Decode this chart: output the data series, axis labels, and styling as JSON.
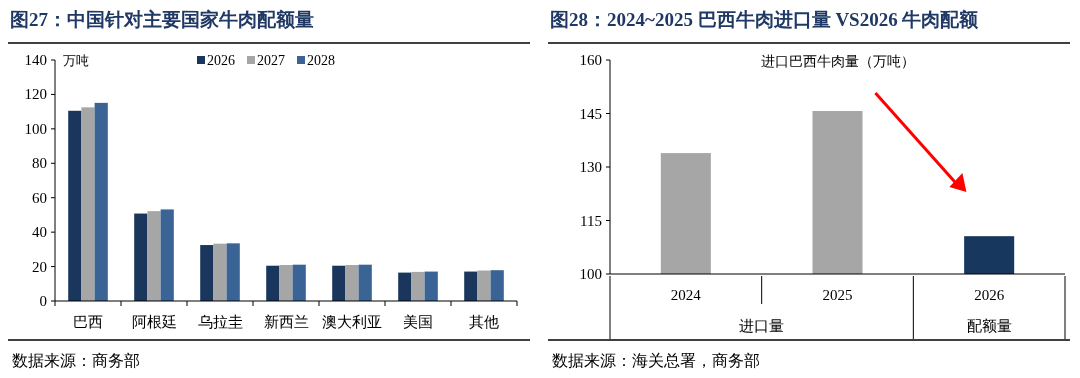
{
  "chart_data": [
    {
      "type": "bar",
      "title": "图27：中国针对主要国家牛肉配额量",
      "ylabel": "万吨",
      "categories": [
        "巴西",
        "阿根廷",
        "乌拉圭",
        "新西兰",
        "澳大利亚",
        "美国",
        "其他"
      ],
      "series": [
        {
          "name": "2026",
          "color": "#1a365d",
          "values": [
            110.5,
            50.8,
            32.5,
            20.5,
            20.5,
            16.5,
            17.1
          ]
        },
        {
          "name": "2027",
          "color": "#a6a6a6",
          "values": [
            112.5,
            52.2,
            33.3,
            20.9,
            20.9,
            16.9,
            17.7
          ]
        },
        {
          "name": "2028",
          "color": "#3a6496",
          "values": [
            115.1,
            53.2,
            33.5,
            21.1,
            21.1,
            17.1,
            17.9
          ]
        }
      ],
      "ylim": [
        0,
        140
      ],
      "yticks": [
        0,
        20,
        40,
        60,
        80,
        100,
        120,
        140
      ],
      "legend": "top",
      "grid": false,
      "annotations": [
        "数据来源：商务部"
      ]
    },
    {
      "type": "bar",
      "title": "图28：2024~2025 巴西牛肉进口量 VS2026 牛肉配额",
      "ylabel": "进口巴西牛肉量（万吨）",
      "categories": [
        "2024",
        "2025",
        "2026"
      ],
      "values": [
        133.9,
        145.7,
        110.6
      ],
      "colors": [
        "#a6a6a6",
        "#a6a6a6",
        "#17375e"
      ],
      "ylim": [
        100,
        160
      ],
      "yticks": [
        100,
        115,
        130,
        145,
        160
      ],
      "grid": false,
      "annotations": [
        "进口量",
        "配额量",
        "数据来源：海关总署，商务部"
      ]
    }
  ]
}
